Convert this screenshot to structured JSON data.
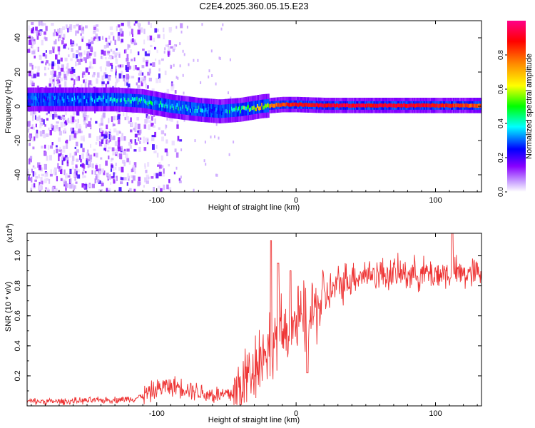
{
  "title": "C2E4.2025.360.05.15.E23",
  "chart_data": [
    {
      "type": "heatmap",
      "xlabel": "Height of straight line (km)",
      "ylabel": "Frequency (Hz)",
      "xlim": [
        -193,
        133
      ],
      "ylim": [
        -50,
        50
      ],
      "xticks": [
        -100,
        0,
        100
      ],
      "yticks": [
        -40,
        -20,
        0,
        20,
        40
      ],
      "colorbar": {
        "label": "Normalized spectral amplitude",
        "range": [
          0,
          1
        ],
        "ticks": [
          "0.0",
          "0.2",
          "0.4",
          "0.6",
          "0.8"
        ],
        "colors": [
          "#ffffff",
          "#8800ff",
          "#0000ff",
          "#00ffff",
          "#00ff00",
          "#ffff00",
          "#ff8800",
          "#ff0000",
          "#ff00aa"
        ]
      },
      "ridge": {
        "description": "dominant spectral line",
        "x": [
          -193,
          -160,
          -130,
          -110,
          -90,
          -70,
          -55,
          -40,
          -25,
          -10,
          0,
          20,
          50,
          80,
          100,
          133
        ],
        "y": [
          4,
          4,
          4,
          3,
          0,
          -2,
          -3,
          -2,
          0,
          1,
          1,
          0.5,
          0.5,
          0.5,
          0.5,
          0.5
        ],
        "amplitude": [
          0.3,
          0.35,
          0.4,
          0.45,
          0.45,
          0.4,
          0.35,
          0.55,
          0.7,
          0.85,
          0.9,
          0.92,
          0.92,
          0.92,
          0.9,
          0.8
        ]
      }
    },
    {
      "type": "line",
      "xlabel": "Height of straight line (km)",
      "ylabel": "SNR (10 * v/v)",
      "multiplier": "(x10",
      "multiplier_exp": "4",
      "xlim": [
        -193,
        133
      ],
      "ylim": [
        0,
        1.15
      ],
      "xticks": [
        -100,
        0,
        100
      ],
      "yticks": [
        "0.2",
        "0.4",
        "0.6",
        "0.8",
        "1.0"
      ],
      "color": "#ee3333",
      "series": [
        {
          "x": [
            -193,
            -170,
            -150,
            -130,
            -115,
            -105,
            -95,
            -85,
            -75,
            -65,
            -55,
            -45,
            -40,
            -35,
            -30,
            -25,
            -20,
            -15,
            -10,
            -5,
            0,
            5,
            10,
            15,
            20,
            30,
            40,
            50,
            60,
            70,
            80,
            90,
            100,
            110,
            120,
            133
          ],
          "y": [
            0.03,
            0.03,
            0.035,
            0.04,
            0.05,
            0.09,
            0.13,
            0.13,
            0.11,
            0.08,
            0.07,
            0.08,
            0.12,
            0.2,
            0.28,
            0.33,
            0.4,
            0.45,
            0.48,
            0.52,
            0.55,
            0.57,
            0.6,
            0.66,
            0.72,
            0.8,
            0.86,
            0.88,
            0.88,
            0.88,
            0.88,
            0.88,
            0.88,
            0.88,
            0.88,
            0.88
          ],
          "spikes": [
            {
              "x": -18,
              "y": 1.1
            },
            {
              "x": -13,
              "y": 0.95
            },
            {
              "x": -4,
              "y": 0.9
            },
            {
              "x": 8,
              "y": 0.22
            },
            {
              "x": 112,
              "y": 1.15
            }
          ]
        }
      ]
    }
  ]
}
